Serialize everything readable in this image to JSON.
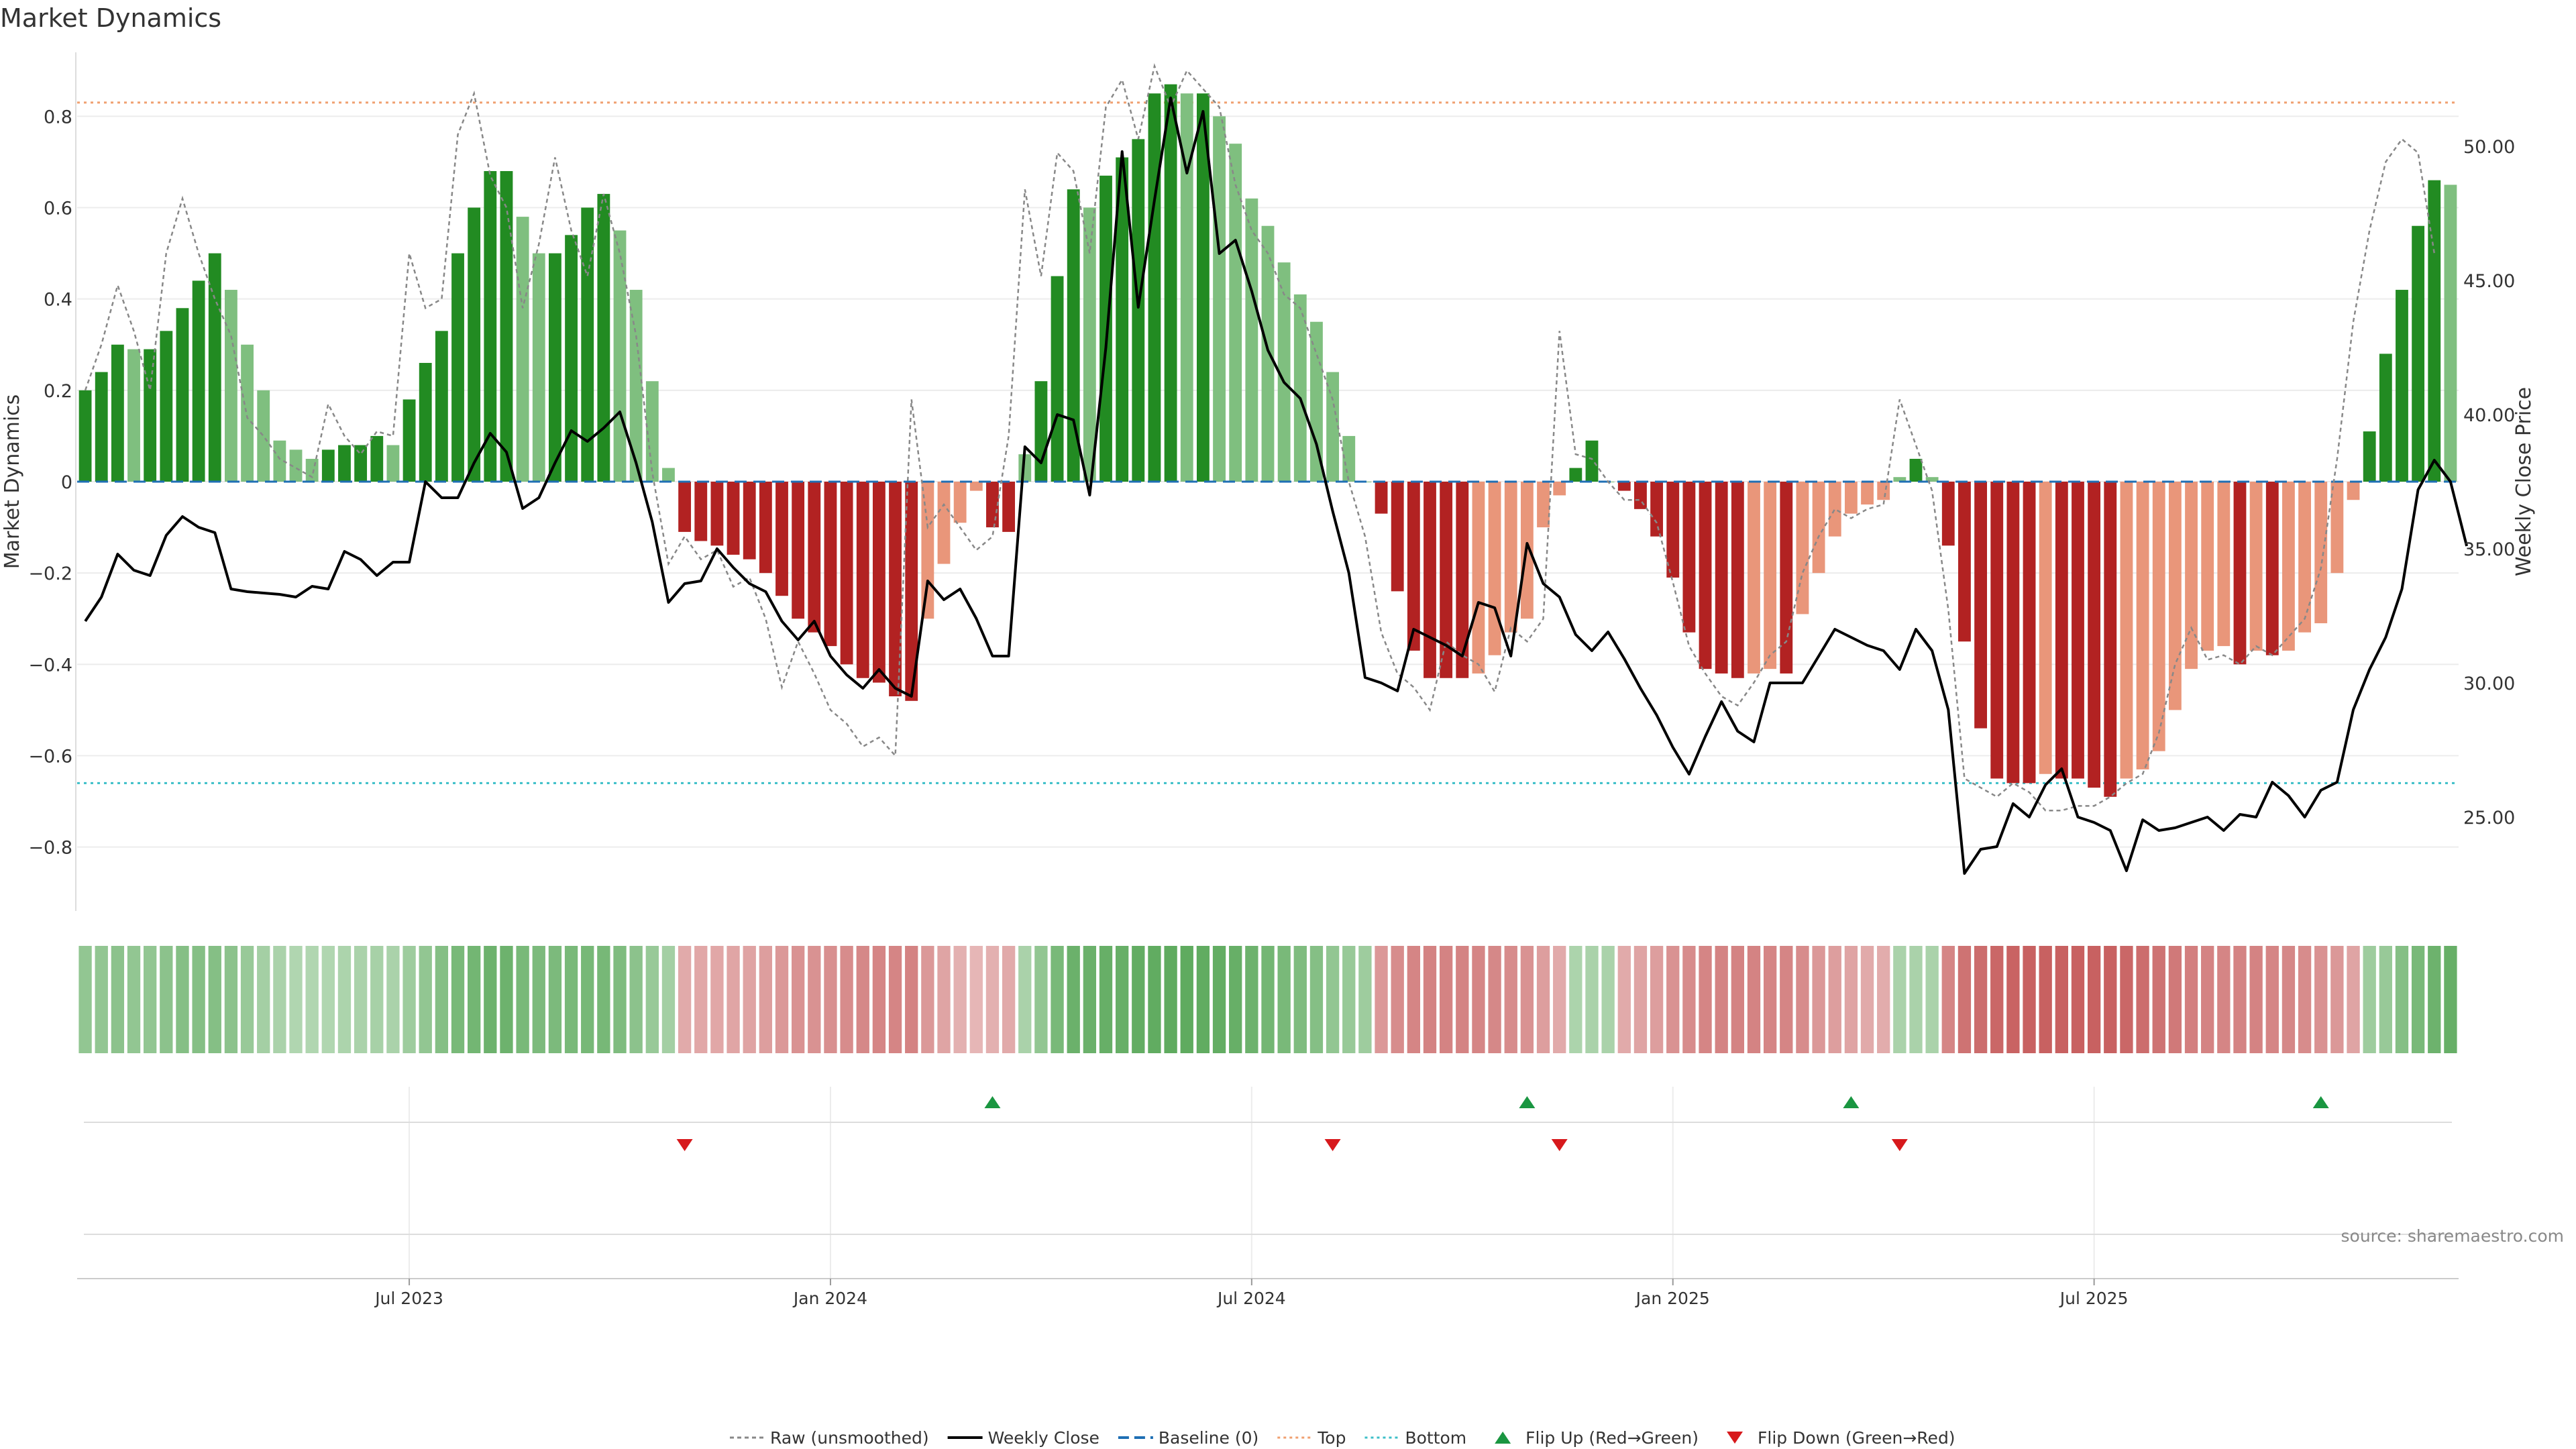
{
  "chart_data": {
    "type": "bar",
    "title": "Market Dynamics",
    "ylabel_left": "Market Dynamics",
    "ylabel_right": "Weekly Close Price",
    "left_ylim": [
      -0.94,
      0.94
    ],
    "right_ylim": [
      21.5,
      53.5
    ],
    "left_ticks": [
      {
        "v": 0.8,
        "label": "0.8"
      },
      {
        "v": 0.6,
        "label": "0.6"
      },
      {
        "v": 0.4,
        "label": "0.4"
      },
      {
        "v": 0.2,
        "label": "0.2"
      },
      {
        "v": 0,
        "label": "0"
      },
      {
        "v": -0.2,
        "label": "−0.2"
      },
      {
        "v": -0.4,
        "label": "−0.4"
      },
      {
        "v": -0.6,
        "label": "−0.6"
      },
      {
        "v": -0.8,
        "label": "−0.8"
      }
    ],
    "right_ticks": [
      {
        "v": 50,
        "label": "50.00"
      },
      {
        "v": 45,
        "label": "45.00"
      },
      {
        "v": 40,
        "label": "40.00"
      },
      {
        "v": 35,
        "label": "35.00"
      },
      {
        "v": 30,
        "label": "30.00"
      },
      {
        "v": 25,
        "label": "25.00"
      }
    ],
    "x_ticks": [
      {
        "week": 20,
        "label": "Jul 2023"
      },
      {
        "week": 46,
        "label": "Jan 2024"
      },
      {
        "week": 72,
        "label": "Jul 2024"
      },
      {
        "week": 98,
        "label": "Jan 2025"
      },
      {
        "week": 124,
        "label": "Jul 2025"
      }
    ],
    "top_level": 0.83,
    "bottom_level": -0.66,
    "bars": [
      0.2,
      0.24,
      0.3,
      0.29,
      0.29,
      0.33,
      0.38,
      0.44,
      0.5,
      0.42,
      0.3,
      0.2,
      0.09,
      0.07,
      0.05,
      0.07,
      0.08,
      0.08,
      0.1,
      0.08,
      0.18,
      0.26,
      0.33,
      0.5,
      0.6,
      0.68,
      0.68,
      0.58,
      0.5,
      0.5,
      0.54,
      0.6,
      0.63,
      0.55,
      0.42,
      0.22,
      0.03,
      -0.11,
      -0.13,
      -0.14,
      -0.16,
      -0.17,
      -0.2,
      -0.25,
      -0.3,
      -0.33,
      -0.36,
      -0.4,
      -0.43,
      -0.44,
      -0.47,
      -0.48,
      -0.3,
      -0.18,
      -0.09,
      -0.02,
      -0.1,
      -0.11,
      0.06,
      0.22,
      0.45,
      0.64,
      0.6,
      0.67,
      0.71,
      0.75,
      0.85,
      0.87,
      0.85,
      0.85,
      0.8,
      0.74,
      0.62,
      0.56,
      0.48,
      0.41,
      0.35,
      0.24,
      0.1,
      0.0,
      -0.07,
      -0.24,
      -0.37,
      -0.43,
      -0.43,
      -0.43,
      -0.42,
      -0.38,
      -0.33,
      -0.3,
      -0.1,
      -0.03,
      0.03,
      0.09,
      0.0,
      -0.02,
      -0.06,
      -0.12,
      -0.21,
      -0.33,
      -0.41,
      -0.42,
      -0.43,
      -0.42,
      -0.41,
      -0.42,
      -0.29,
      -0.2,
      -0.12,
      -0.07,
      -0.05,
      -0.04,
      0.01,
      0.05,
      0.01,
      -0.14,
      -0.35,
      -0.54,
      -0.65,
      -0.66,
      -0.66,
      -0.64,
      -0.65,
      -0.65,
      -0.67,
      -0.69,
      -0.65,
      -0.63,
      -0.59,
      -0.5,
      -0.41,
      -0.37,
      -0.36,
      -0.4,
      -0.37,
      -0.38,
      -0.37,
      -0.33,
      -0.31,
      -0.2,
      -0.04,
      0.11,
      0.28,
      0.42,
      0.56,
      0.66,
      0.65
    ],
    "raw": [
      0.2,
      0.3,
      0.43,
      0.33,
      0.2,
      0.5,
      0.62,
      0.5,
      0.4,
      0.32,
      0.14,
      0.1,
      0.05,
      0.03,
      0.01,
      0.17,
      0.1,
      0.06,
      0.11,
      0.1,
      0.5,
      0.38,
      0.4,
      0.76,
      0.85,
      0.67,
      0.6,
      0.38,
      0.52,
      0.71,
      0.55,
      0.45,
      0.63,
      0.5,
      0.32,
      0.02,
      -0.18,
      -0.12,
      -0.17,
      -0.15,
      -0.23,
      -0.21,
      -0.3,
      -0.45,
      -0.35,
      -0.42,
      -0.5,
      -0.53,
      -0.58,
      -0.56,
      -0.6,
      0.18,
      -0.1,
      -0.05,
      -0.1,
      -0.15,
      -0.12,
      0.1,
      0.64,
      0.45,
      0.72,
      0.68,
      0.5,
      0.82,
      0.88,
      0.75,
      0.91,
      0.82,
      0.9,
      0.86,
      0.82,
      0.65,
      0.55,
      0.5,
      0.41,
      0.38,
      0.28,
      0.18,
      0.0,
      -0.12,
      -0.33,
      -0.42,
      -0.45,
      -0.5,
      -0.35,
      -0.38,
      -0.4,
      -0.46,
      -0.32,
      -0.35,
      -0.3,
      0.33,
      0.06,
      0.05,
      0.0,
      -0.04,
      -0.04,
      -0.09,
      -0.22,
      -0.36,
      -0.42,
      -0.47,
      -0.49,
      -0.44,
      -0.38,
      -0.35,
      -0.2,
      -0.12,
      -0.06,
      -0.08,
      -0.06,
      -0.05,
      0.18,
      0.08,
      -0.02,
      -0.28,
      -0.65,
      -0.67,
      -0.69,
      -0.66,
      -0.68,
      -0.72,
      -0.72,
      -0.71,
      -0.71,
      -0.69,
      -0.66,
      -0.64,
      -0.55,
      -0.4,
      -0.32,
      -0.39,
      -0.38,
      -0.4,
      -0.36,
      -0.38,
      -0.34,
      -0.3,
      -0.19,
      0.05,
      0.35,
      0.55,
      0.7,
      0.75,
      0.72,
      0.5
    ],
    "close": [
      32.3,
      33.2,
      34.8,
      34.2,
      34.0,
      35.5,
      36.2,
      35.8,
      35.6,
      33.5,
      33.4,
      33.35,
      33.3,
      33.2,
      33.6,
      33.5,
      34.9,
      34.6,
      34.0,
      34.5,
      34.5,
      37.5,
      36.9,
      36.9,
      38.2,
      39.3,
      38.6,
      36.5,
      36.9,
      38.2,
      39.4,
      39.0,
      39.5,
      40.1,
      38.2,
      36.0,
      33.0,
      33.7,
      33.8,
      35.0,
      34.3,
      33.7,
      33.4,
      32.3,
      31.6,
      32.3,
      31.0,
      30.3,
      29.8,
      30.5,
      29.8,
      29.5,
      33.8,
      33.1,
      33.5,
      32.4,
      31.0,
      31.0,
      38.8,
      38.2,
      40.0,
      39.8,
      37.0,
      42.5,
      49.8,
      44.0,
      48.0,
      51.8,
      49.0,
      51.3,
      46.0,
      46.5,
      44.6,
      42.4,
      41.2,
      40.6,
      38.9,
      36.4,
      34.1,
      30.2,
      30.0,
      29.7,
      32.0,
      31.7,
      31.4,
      31.0,
      33.0,
      32.8,
      31.0,
      35.2,
      33.7,
      33.2,
      31.8,
      31.2,
      31.9,
      30.9,
      29.8,
      28.8,
      27.6,
      26.6,
      28.0,
      29.3,
      28.2,
      27.8,
      30.0,
      30.0,
      30.0,
      31.0,
      32.0,
      31.7,
      31.4,
      31.2,
      30.5,
      32.0,
      31.2,
      29.0,
      22.9,
      23.8,
      23.9,
      25.5,
      25.0,
      26.2,
      26.8,
      25.0,
      24.8,
      24.5,
      23.0,
      24.9,
      24.5,
      24.6,
      24.8,
      25.0,
      24.5,
      25.1,
      25.0,
      26.3,
      25.8,
      25.0,
      26.0,
      26.3,
      29.0,
      30.5,
      31.7,
      33.5,
      37.2,
      38.3,
      37.5,
      35.1
    ],
    "heat_intensity": [
      0.5,
      0.5,
      0.55,
      0.5,
      0.5,
      0.55,
      0.6,
      0.6,
      0.6,
      0.55,
      0.45,
      0.35,
      0.3,
      0.25,
      0.25,
      0.25,
      0.28,
      0.3,
      0.32,
      0.3,
      0.4,
      0.5,
      0.6,
      0.7,
      0.75,
      0.8,
      0.8,
      0.7,
      0.68,
      0.68,
      0.7,
      0.72,
      0.72,
      0.65,
      0.55,
      0.45,
      0.35,
      0.3,
      0.32,
      0.32,
      0.34,
      0.36,
      0.4,
      0.45,
      0.5,
      0.5,
      0.52,
      0.55,
      0.58,
      0.6,
      0.6,
      0.62,
      0.45,
      0.35,
      0.25,
      0.2,
      0.25,
      0.3,
      0.3,
      0.5,
      0.7,
      0.82,
      0.82,
      0.85,
      0.85,
      0.88,
      0.9,
      0.92,
      0.92,
      0.9,
      0.88,
      0.85,
      0.8,
      0.75,
      0.7,
      0.65,
      0.6,
      0.5,
      0.45,
      0.4,
      0.45,
      0.55,
      0.6,
      0.62,
      0.62,
      0.62,
      0.6,
      0.58,
      0.55,
      0.5,
      0.4,
      0.3,
      0.28,
      0.3,
      0.3,
      0.3,
      0.35,
      0.4,
      0.5,
      0.55,
      0.6,
      0.62,
      0.62,
      0.62,
      0.6,
      0.6,
      0.55,
      0.45,
      0.4,
      0.35,
      0.3,
      0.28,
      0.3,
      0.3,
      0.3,
      0.6,
      0.75,
      0.8,
      0.85,
      0.88,
      0.9,
      0.9,
      0.9,
      0.9,
      0.9,
      0.9,
      0.85,
      0.8,
      0.75,
      0.7,
      0.65,
      0.62,
      0.6,
      0.62,
      0.62,
      0.6,
      0.58,
      0.55,
      0.5,
      0.45,
      0.35,
      0.4,
      0.45,
      0.6,
      0.7,
      0.8,
      0.85
    ],
    "flip_up_weeks": [
      56,
      89,
      109,
      138
    ],
    "flip_down_weeks": [
      37,
      77,
      91,
      112
    ],
    "colors": {
      "green_strong": "#228b22",
      "green_light": "#7fbf7f",
      "red_strong": "#b22222",
      "red_light": "#e9967a",
      "raw_line": "#888888",
      "close_line": "#000000",
      "baseline": "#1f6fb4",
      "top": "#f0a070",
      "bottom": "#3cbfc8",
      "flip_up": "#1a9641",
      "flip_down": "#d7191c",
      "grid": "#ececec",
      "text": "#333333"
    },
    "legend": {
      "position": "bottom-center",
      "entries": [
        {
          "key": "raw",
          "label": "Raw (unsmoothed)"
        },
        {
          "key": "close",
          "label": "Weekly Close"
        },
        {
          "key": "baseline",
          "label": "Baseline (0)"
        },
        {
          "key": "top",
          "label": "Top"
        },
        {
          "key": "bottom",
          "label": "Bottom"
        },
        {
          "key": "flip_up",
          "label": "Flip Up (Red→Green)"
        },
        {
          "key": "flip_down",
          "label": "Flip Down (Green→Red)"
        }
      ]
    },
    "source_note": "source: sharemaestro.com"
  }
}
